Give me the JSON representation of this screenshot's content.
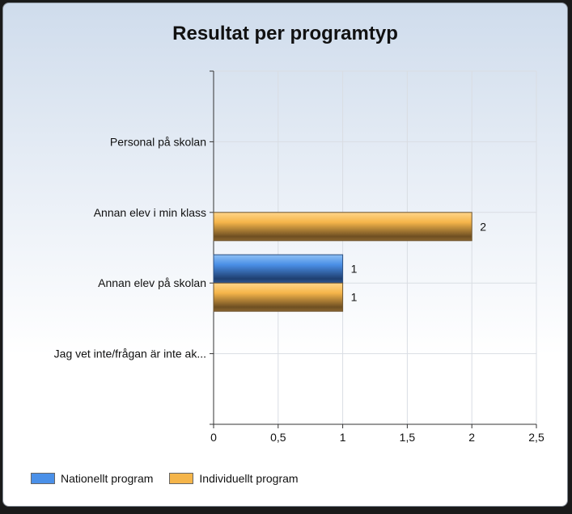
{
  "chart_data": {
    "type": "bar",
    "orientation": "horizontal",
    "title": "Resultat per programtyp",
    "categories": [
      "Personal på skolan",
      "Annan elev i min klass",
      "Annan elev på skolan",
      "Jag vet inte/frågan är inte ak..."
    ],
    "series": [
      {
        "name": "Nationellt program",
        "color": "#4a90e8",
        "values": [
          0,
          0,
          1,
          0
        ]
      },
      {
        "name": "Individuellt program",
        "color": "#f5b54a",
        "values": [
          0,
          2,
          1,
          0
        ]
      }
    ],
    "xlim": [
      0,
      2.5
    ],
    "xticks": [
      "0",
      "0,5",
      "1",
      "1,5",
      "2",
      "2,5"
    ],
    "data_labels": true,
    "grid": true,
    "legend_position": "bottom-left"
  }
}
